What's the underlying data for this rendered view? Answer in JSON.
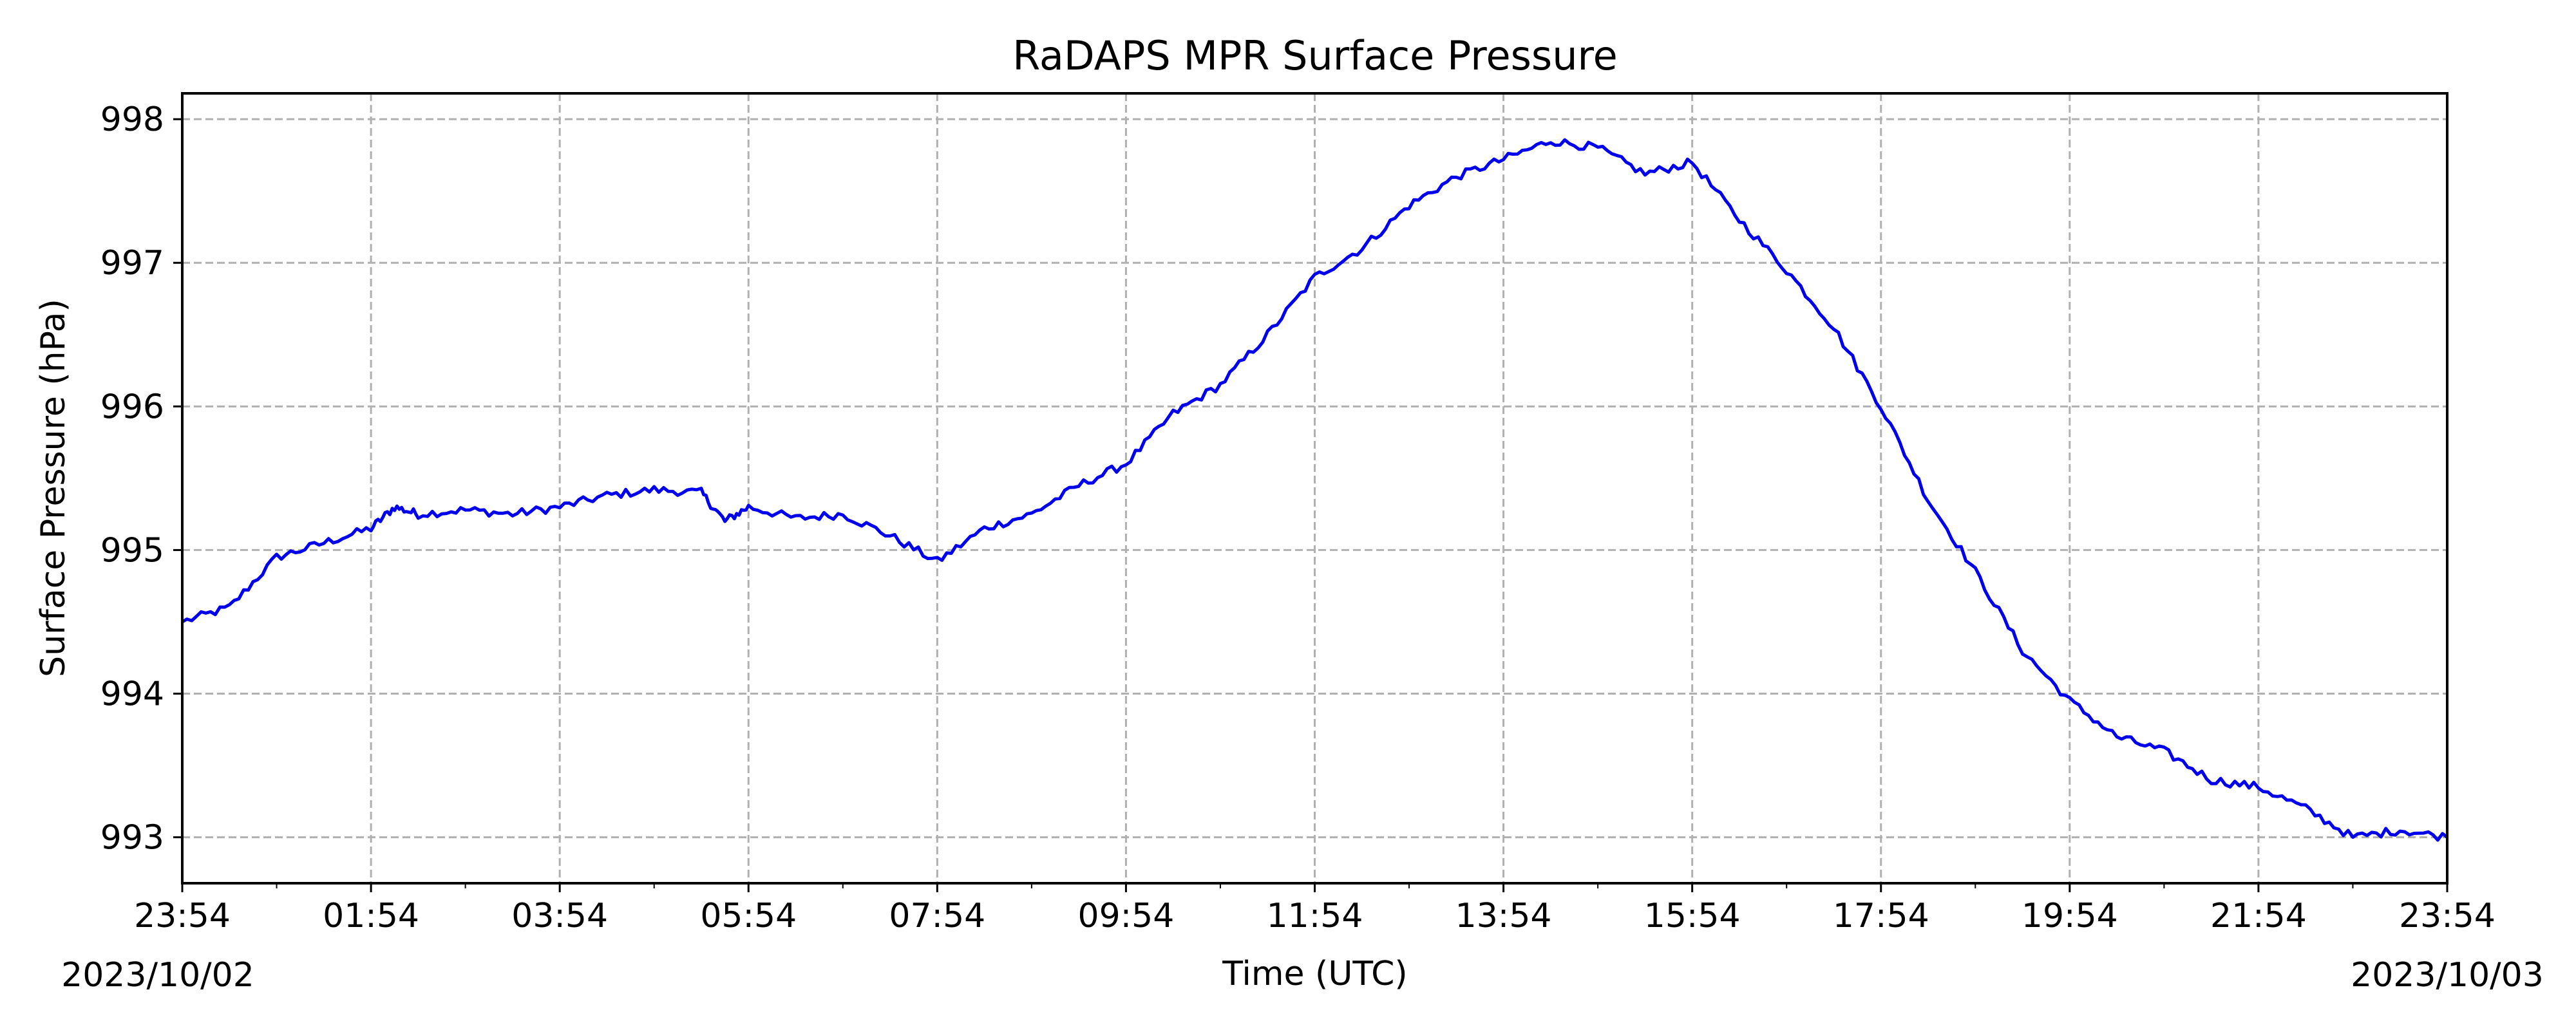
{
  "chart_data": {
    "type": "line",
    "title": "RaDAPS MPR Surface Pressure",
    "xlabel": "Time (UTC)",
    "ylabel": "Surface Pressure (hPa)",
    "x_unit": "hours (UTC)",
    "xlim": [
      "2023-10-02 23:54",
      "2023-10-03 23:54"
    ],
    "ylim": [
      992.68,
      998.18
    ],
    "x_ticks": [
      "23:54",
      "01:54",
      "03:54",
      "05:54",
      "07:54",
      "09:54",
      "11:54",
      "13:54",
      "15:54",
      "17:54",
      "19:54",
      "21:54",
      "23:54"
    ],
    "x_date_labels": {
      "start": "2023/10/02",
      "end": "2023/10/03"
    },
    "y_ticks": [
      993,
      994,
      995,
      996,
      997,
      998
    ],
    "grid": true,
    "line_style": {
      "color": "#0000ee",
      "dash": "solid"
    },
    "series": [
      {
        "x": [
          "2023-10-02 23:54",
          "2023-10-03 00:24",
          "2023-10-03 00:54",
          "2023-10-03 01:24",
          "2023-10-03 01:54",
          "2023-10-03 02:09",
          "2023-10-03 02:24",
          "2023-10-03 02:54",
          "2023-10-03 03:24",
          "2023-10-03 03:54",
          "2023-10-03 04:24",
          "2023-10-03 04:54",
          "2023-10-03 05:24",
          "2023-10-03 05:39",
          "2023-10-03 05:54",
          "2023-10-03 06:24",
          "2023-10-03 06:54",
          "2023-10-03 07:24",
          "2023-10-03 07:54",
          "2023-10-03 08:24",
          "2023-10-03 08:54",
          "2023-10-03 09:24",
          "2023-10-03 09:54",
          "2023-10-03 10:24",
          "2023-10-03 10:54",
          "2023-10-03 11:24",
          "2023-10-03 11:54",
          "2023-10-03 12:24",
          "2023-10-03 12:54",
          "2023-10-03 13:24",
          "2023-10-03 13:54",
          "2023-10-03 14:24",
          "2023-10-03 14:54",
          "2023-10-03 15:24",
          "2023-10-03 15:54",
          "2023-10-03 16:24",
          "2023-10-03 16:54",
          "2023-10-03 17:24",
          "2023-10-03 17:54",
          "2023-10-03 18:24",
          "2023-10-03 18:54",
          "2023-10-03 19:24",
          "2023-10-03 19:54",
          "2023-10-03 20:24",
          "2023-10-03 20:54",
          "2023-10-03 21:24",
          "2023-10-03 21:54",
          "2023-10-03 22:24",
          "2023-10-03 22:54",
          "2023-10-03 23:24",
          "2023-10-03 23:54"
        ],
        "values": [
          994.5,
          994.6,
          994.95,
          995.05,
          995.15,
          995.3,
          995.25,
          995.28,
          995.25,
          995.3,
          995.38,
          995.42,
          995.4,
          995.2,
          995.3,
          995.22,
          995.25,
          995.1,
          994.92,
          995.15,
          995.25,
          995.45,
          995.6,
          995.95,
          996.15,
          996.5,
          996.9,
          997.1,
          997.4,
          997.6,
          997.72,
          997.85,
          997.8,
          997.62,
          997.7,
          997.3,
          996.95,
          996.55,
          996.0,
          995.35,
          994.85,
          994.3,
          993.95,
          993.7,
          993.6,
          993.4,
          993.35,
          993.2,
          993.0,
          993.05,
          993.0
        ]
      }
    ]
  }
}
